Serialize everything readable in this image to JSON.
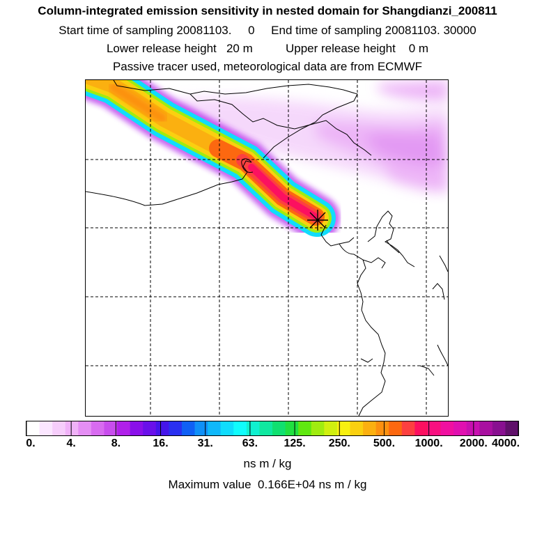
{
  "title": "Column-integrated emission sensitivity in nested domain for Shangdianzi_200811",
  "start_label": "Start time of sampling 20081103.     0",
  "end_label": "End time of sampling 20081103. 30000",
  "lower_label": "Lower release height   20 m",
  "upper_label": "Upper release height    0 m",
  "tracer_label": "Passive tracer used, meteorological data are from ECMWF",
  "colorbar": {
    "units": "ns m / kg",
    "ticks": [
      "0.",
      "4.",
      "8.",
      "16.",
      "31.",
      "63.",
      "125.",
      "250.",
      "500.",
      "1000.",
      "2000.",
      "4000."
    ],
    "colors": [
      "#ffffff",
      "#fbe6ff",
      "#f6cdfb",
      "#f0b2f8",
      "#e58ef4",
      "#d86bf0",
      "#c84ded",
      "#b020ea",
      "#8a10ea",
      "#6a10ea",
      "#4515ea",
      "#2a30f0",
      "#1060f5",
      "#1090f8",
      "#10b8fa",
      "#10dcfc",
      "#10fcfc",
      "#10f0d0",
      "#10e8a0",
      "#10e070",
      "#20e040",
      "#60e810",
      "#a0ec10",
      "#d0f010",
      "#f8f010",
      "#fad010",
      "#fbb010",
      "#fc9010",
      "#fc6810",
      "#fc4040",
      "#fc1060",
      "#f81080",
      "#f010a0",
      "#e010b0",
      "#c810b0",
      "#a810a0",
      "#881090",
      "#60106a"
    ]
  },
  "max_value_label": "Maximum value  0.166E+04 ns m / kg",
  "colors": {
    "plume_core": "#fc1060",
    "plume_mid": "#fbb010",
    "plume_edge": "#10fcfc",
    "background_haze": "#e58ef4"
  }
}
